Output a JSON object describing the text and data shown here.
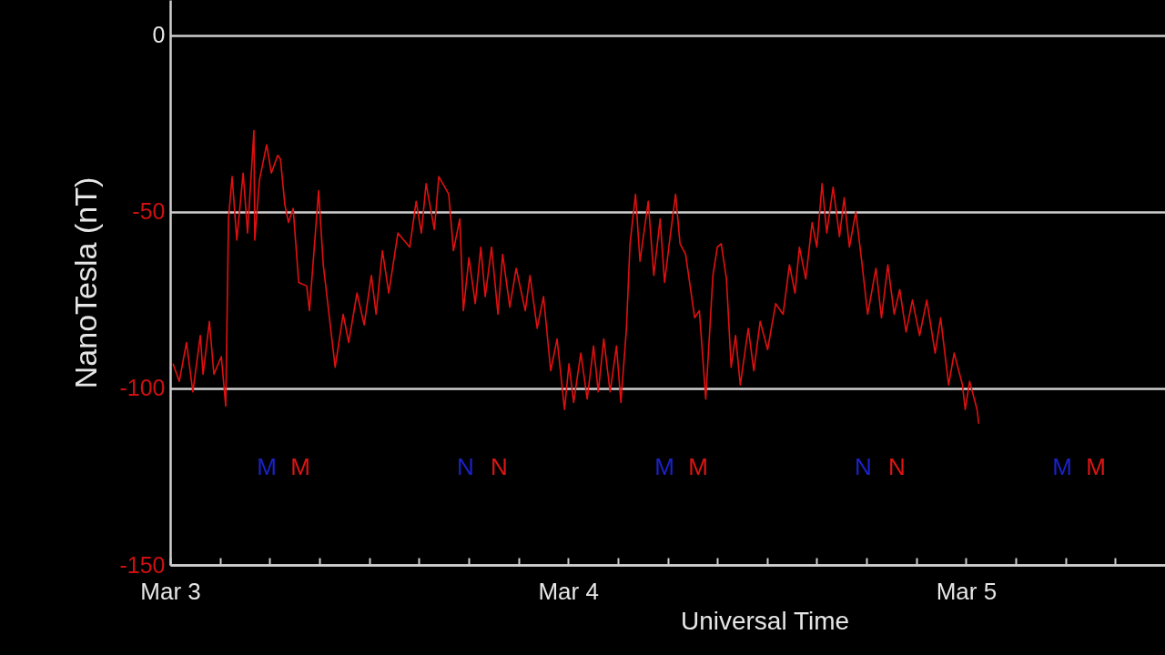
{
  "chart_data": {
    "type": "line",
    "xlabel": "Universal Time",
    "ylabel": "NanoTesla (nT)",
    "xlim": [
      "--03-03",
      "--03-05T12:00"
    ],
    "ylim": [
      -150,
      10
    ],
    "xticks": [
      {
        "value": "--03-03",
        "label": "Mar 3"
      },
      {
        "value": "--03-03T03:00",
        "label": null
      },
      {
        "value": "--03-03T06:00",
        "label": null
      },
      {
        "value": "--03-03T09:00",
        "label": null
      },
      {
        "value": "--03-03T12:00",
        "label": null
      },
      {
        "value": "--03-03T15:00",
        "label": null
      },
      {
        "value": "--03-03T18:00",
        "label": null
      },
      {
        "value": "--03-03T21:00",
        "label": null
      },
      {
        "value": "--03-04",
        "label": "Mar 4"
      },
      {
        "value": "--03-04T03:00",
        "label": null
      },
      {
        "value": "--03-04T06:00",
        "label": null
      },
      {
        "value": "--03-04T09:00",
        "label": null
      },
      {
        "value": "--03-04T12:00",
        "label": null
      },
      {
        "value": "--03-04T15:00",
        "label": null
      },
      {
        "value": "--03-04T18:00",
        "label": null
      },
      {
        "value": "--03-04T21:00",
        "label": null
      },
      {
        "value": "--03-05",
        "label": "Mar 5"
      },
      {
        "value": "--03-05T03:00",
        "label": null
      },
      {
        "value": "--03-05T06:00",
        "label": null
      },
      {
        "value": "--03-05T09:00",
        "label": null
      }
    ],
    "yticks": [
      0,
      -50,
      -100,
      -150
    ],
    "grid": true,
    "x": [
      "--03-03T00:10",
      "--03-03T00:33",
      "--03-03T00:59",
      "--03-03T01:22",
      "--03-03T01:49",
      "--03-03T01:59",
      "--03-03T02:22",
      "--03-03T02:38",
      "--03-03T03:05",
      "--03-03T03:21",
      "--03-03T03:31",
      "--03-03T03:44",
      "--03-03T04:01",
      "--03-03T04:24",
      "--03-03T04:40",
      "--03-03T05:03",
      "--03-03T05:06",
      "--03-03T05:23",
      "--03-03T05:49",
      "--03-03T06:06",
      "--03-03T06:29",
      "--03-03T06:39",
      "--03-03T06:55",
      "--03-03T07:08",
      "--03-03T07:25",
      "--03-03T07:45",
      "--03-03T08:14",
      "--03-03T08:24",
      "--03-03T08:57",
      "--03-03T09:14",
      "--03-03T09:57",
      "--03-03T10:26",
      "--03-03T10:46",
      "--03-03T11:16",
      "--03-03T11:42",
      "--03-03T12:08",
      "--03-03T12:25",
      "--03-03T12:48",
      "--03-03T13:11",
      "--03-03T13:44",
      "--03-03T14:27",
      "--03-03T14:50",
      "--03-03T15:09",
      "--03-03T15:26",
      "--03-03T15:56",
      "--03-03T16:12",
      "--03-03T16:48",
      "--03-03T17:05",
      "--03-03T17:28",
      "--03-03T17:41",
      "--03-03T18:01",
      "--03-03T18:24",
      "--03-03T18:44",
      "--03-03T19:00",
      "--03-03T19:23",
      "--03-03T19:46",
      "--03-03T20:03",
      "--03-03T20:29",
      "--03-03T20:52",
      "--03-03T21:25",
      "--03-03T21:42",
      "--03-03T22:08",
      "--03-03T22:31",
      "--03-03T22:57",
      "--03-03T23:20",
      "--03-03T23:47",
      "--03-04T00:03",
      "--03-04T00:20",
      "--03-04T00:46",
      "--03-04T01:09",
      "--03-04T01:32",
      "--03-04T01:49",
      "--03-04T02:09",
      "--03-04T02:32",
      "--03-04T02:55",
      "--03-04T03:11",
      "--03-04T03:31",
      "--03-04T03:44",
      "--03-04T04:04",
      "--03-04T04:20",
      "--03-04T04:50",
      "--03-04T05:10",
      "--03-04T05:33",
      "--03-04T05:49",
      "--03-04T06:06",
      "--03-04T06:29",
      "--03-04T06:45",
      "--03-04T07:05",
      "--03-04T07:38",
      "--03-04T07:55",
      "--03-04T08:18",
      "--03-04T08:44",
      "--03-04T09:00",
      "--03-04T09:14",
      "--03-04T09:33",
      "--03-04T09:50",
      "--03-04T10:06",
      "--03-04T10:23",
      "--03-04T10:52",
      "--03-04T11:12",
      "--03-04T11:35",
      "--03-04T12:02",
      "--03-04T12:31",
      "--03-04T12:58",
      "--03-04T13:21",
      "--03-04T13:41",
      "--03-04T13:57",
      "--03-04T14:20",
      "--03-04T14:43",
      "--03-04T15:00",
      "--03-04T15:19",
      "--03-04T15:36",
      "--03-04T15:59",
      "--03-04T16:22",
      "--03-04T16:39",
      "--03-04T16:58",
      "--03-04T17:21",
      "--03-04T17:44",
      "--03-04T18:04",
      "--03-04T18:34",
      "--03-04T18:54",
      "--03-04T19:17",
      "--03-04T19:40",
      "--03-04T20:00",
      "--03-04T20:23",
      "--03-04T20:46",
      "--03-04T21:12",
      "--03-04T21:38",
      "--03-04T22:08",
      "--03-04T22:28",
      "--03-04T22:57",
      "--03-04T23:17",
      "--03-04T23:47",
      "--03-04T23:57",
      "--03-05T00:13",
      "--03-05T00:40",
      "--03-05T00:46"
    ],
    "series": [
      {
        "color": "#e01010",
        "values": [
          -93,
          -98,
          -87,
          -101,
          -85,
          -96,
          -81,
          -96,
          -91,
          -105,
          -52,
          -40,
          -58,
          -39,
          -56,
          -27,
          -58,
          -41,
          -31,
          -39,
          -34,
          -35,
          -48,
          -53,
          -49,
          -70,
          -71,
          -78,
          -44,
          -65,
          -94,
          -79,
          -87,
          -73,
          -82,
          -68,
          -79,
          -61,
          -73,
          -56,
          -60,
          -47,
          -56,
          -42,
          -55,
          -40,
          -45,
          -61,
          -52,
          -78,
          -63,
          -76,
          -60,
          -74,
          -60,
          -79,
          -62,
          -77,
          -66,
          -78,
          -68,
          -83,
          -74,
          -95,
          -86,
          -106,
          -93,
          -104,
          -90,
          -103,
          -88,
          -101,
          -86,
          -101,
          -88,
          -104,
          -83,
          -59,
          -45,
          -64,
          -47,
          -68,
          -52,
          -70,
          -59,
          -45,
          -59,
          -62,
          -80,
          -78,
          -103,
          -68,
          -60,
          -59,
          -69,
          -94,
          -85,
          -99,
          -83,
          -95,
          -81,
          -89,
          -76,
          -79,
          -65,
          -73,
          -60,
          -69,
          -53,
          -60,
          -42,
          -56,
          -43,
          -57,
          -46,
          -60,
          -50,
          -65,
          -79,
          -66,
          -80,
          -65,
          -79,
          -72,
          -84,
          -75,
          -85,
          -75,
          -90,
          -80,
          -99,
          -90,
          -99,
          -106,
          -98,
          -106,
          -110
        ]
      }
    ],
    "annotations": [
      "M",
      "M",
      "N",
      "N",
      "M",
      "M",
      "N",
      "N",
      "M",
      "M"
    ]
  }
}
